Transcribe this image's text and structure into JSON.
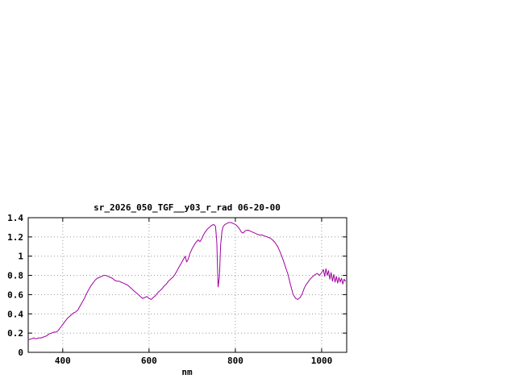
{
  "page": {
    "background": "#ffffff"
  },
  "chart_data": {
    "type": "line",
    "title": "sr_2026_050_TGF__y03_r_rad 06-20-00",
    "xlabel": "nm",
    "ylabel": "",
    "xlim": [
      320,
      1058
    ],
    "ylim": [
      0,
      1.4
    ],
    "x_ticks": [
      400,
      600,
      800,
      1000
    ],
    "y_ticks": [
      0,
      0.2,
      0.4,
      0.6,
      0.8,
      1,
      1.2,
      1.4
    ],
    "grid": true,
    "legend": "none",
    "line_color": "#a000a0",
    "border_color": "#000000",
    "grid_color": "#999999",
    "series": [
      {
        "name": "sr_2026_050_TGF__y03_r_rad 06-20-00",
        "points": [
          [
            320,
            0.13
          ],
          [
            327,
            0.14
          ],
          [
            333,
            0.15
          ],
          [
            338,
            0.14
          ],
          [
            344,
            0.15
          ],
          [
            350,
            0.15
          ],
          [
            356,
            0.16
          ],
          [
            362,
            0.17
          ],
          [
            368,
            0.19
          ],
          [
            374,
            0.2
          ],
          [
            380,
            0.21
          ],
          [
            385,
            0.21
          ],
          [
            390,
            0.23
          ],
          [
            395,
            0.26
          ],
          [
            400,
            0.29
          ],
          [
            405,
            0.32
          ],
          [
            410,
            0.35
          ],
          [
            415,
            0.37
          ],
          [
            420,
            0.39
          ],
          [
            425,
            0.41
          ],
          [
            430,
            0.42
          ],
          [
            435,
            0.44
          ],
          [
            440,
            0.48
          ],
          [
            445,
            0.52
          ],
          [
            450,
            0.56
          ],
          [
            455,
            0.61
          ],
          [
            460,
            0.65
          ],
          [
            465,
            0.69
          ],
          [
            470,
            0.72
          ],
          [
            475,
            0.75
          ],
          [
            480,
            0.77
          ],
          [
            485,
            0.78
          ],
          [
            490,
            0.79
          ],
          [
            495,
            0.8
          ],
          [
            500,
            0.8
          ],
          [
            505,
            0.79
          ],
          [
            510,
            0.78
          ],
          [
            515,
            0.77
          ],
          [
            520,
            0.75
          ],
          [
            525,
            0.74
          ],
          [
            530,
            0.74
          ],
          [
            535,
            0.73
          ],
          [
            540,
            0.72
          ],
          [
            545,
            0.71
          ],
          [
            550,
            0.7
          ],
          [
            555,
            0.68
          ],
          [
            560,
            0.66
          ],
          [
            565,
            0.64
          ],
          [
            570,
            0.62
          ],
          [
            575,
            0.6
          ],
          [
            580,
            0.58
          ],
          [
            585,
            0.56
          ],
          [
            590,
            0.57
          ],
          [
            595,
            0.58
          ],
          [
            600,
            0.56
          ],
          [
            605,
            0.55
          ],
          [
            610,
            0.57
          ],
          [
            615,
            0.59
          ],
          [
            620,
            0.62
          ],
          [
            625,
            0.64
          ],
          [
            630,
            0.66
          ],
          [
            635,
            0.69
          ],
          [
            640,
            0.71
          ],
          [
            645,
            0.74
          ],
          [
            650,
            0.76
          ],
          [
            655,
            0.78
          ],
          [
            660,
            0.81
          ],
          [
            665,
            0.85
          ],
          [
            670,
            0.89
          ],
          [
            675,
            0.93
          ],
          [
            680,
            0.97
          ],
          [
            684,
            1.0
          ],
          [
            687,
            0.94
          ],
          [
            690,
            0.96
          ],
          [
            695,
            1.03
          ],
          [
            700,
            1.08
          ],
          [
            705,
            1.12
          ],
          [
            710,
            1.15
          ],
          [
            714,
            1.17
          ],
          [
            718,
            1.15
          ],
          [
            722,
            1.18
          ],
          [
            726,
            1.22
          ],
          [
            730,
            1.25
          ],
          [
            735,
            1.28
          ],
          [
            740,
            1.3
          ],
          [
            745,
            1.32
          ],
          [
            750,
            1.33
          ],
          [
            754,
            1.31
          ],
          [
            757,
            1.15
          ],
          [
            760,
            0.68
          ],
          [
            763,
            0.78
          ],
          [
            766,
            1.12
          ],
          [
            769,
            1.26
          ],
          [
            772,
            1.31
          ],
          [
            776,
            1.33
          ],
          [
            780,
            1.34
          ],
          [
            785,
            1.35
          ],
          [
            790,
            1.35
          ],
          [
            795,
            1.34
          ],
          [
            800,
            1.33
          ],
          [
            805,
            1.31
          ],
          [
            810,
            1.28
          ],
          [
            814,
            1.25
          ],
          [
            818,
            1.24
          ],
          [
            822,
            1.26
          ],
          [
            826,
            1.27
          ],
          [
            830,
            1.27
          ],
          [
            835,
            1.26
          ],
          [
            840,
            1.25
          ],
          [
            845,
            1.24
          ],
          [
            850,
            1.23
          ],
          [
            856,
            1.22
          ],
          [
            862,
            1.22
          ],
          [
            868,
            1.21
          ],
          [
            874,
            1.2
          ],
          [
            880,
            1.19
          ],
          [
            886,
            1.17
          ],
          [
            892,
            1.14
          ],
          [
            898,
            1.1
          ],
          [
            904,
            1.04
          ],
          [
            910,
            0.97
          ],
          [
            916,
            0.89
          ],
          [
            922,
            0.81
          ],
          [
            928,
            0.7
          ],
          [
            934,
            0.6
          ],
          [
            940,
            0.56
          ],
          [
            945,
            0.55
          ],
          [
            950,
            0.57
          ],
          [
            955,
            0.61
          ],
          [
            960,
            0.67
          ],
          [
            965,
            0.71
          ],
          [
            970,
            0.74
          ],
          [
            975,
            0.77
          ],
          [
            980,
            0.79
          ],
          [
            985,
            0.81
          ],
          [
            990,
            0.82
          ],
          [
            995,
            0.8
          ],
          [
            1000,
            0.83
          ],
          [
            1004,
            0.86
          ],
          [
            1007,
            0.79
          ],
          [
            1010,
            0.87
          ],
          [
            1013,
            0.8
          ],
          [
            1016,
            0.85
          ],
          [
            1019,
            0.76
          ],
          [
            1022,
            0.83
          ],
          [
            1025,
            0.74
          ],
          [
            1028,
            0.81
          ],
          [
            1031,
            0.73
          ],
          [
            1034,
            0.79
          ],
          [
            1037,
            0.72
          ],
          [
            1040,
            0.78
          ],
          [
            1043,
            0.73
          ],
          [
            1046,
            0.77
          ],
          [
            1049,
            0.71
          ],
          [
            1052,
            0.76
          ],
          [
            1055,
            0.74
          ]
        ]
      }
    ]
  }
}
